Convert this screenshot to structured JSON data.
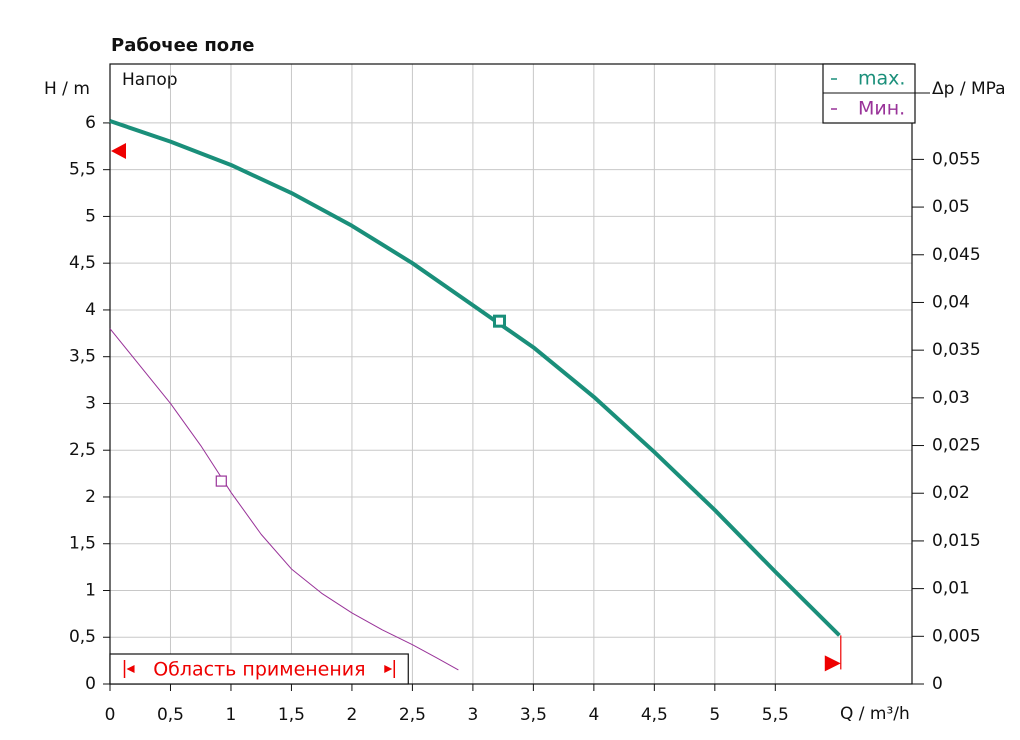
{
  "chart_data": {
    "type": "line",
    "title": "Рабочее поле",
    "y_label": "H / m",
    "y_annotation": "Напор",
    "y2_label": "Δp / MPa",
    "x_label": "Q / m³/h",
    "range_label": "Область применения",
    "range": [
      0.12,
      2.35
    ],
    "xlim": [
      0,
      6.63
    ],
    "ylim": [
      0,
      6.63
    ],
    "y2lim": [
      0,
      0.065
    ],
    "grid": true,
    "legend": "top-right",
    "xticks": [
      0,
      {
        "value": 0.5,
        "label": "0,5"
      },
      1,
      {
        "value": 1.5,
        "label": "1,5"
      },
      2,
      {
        "value": 2.5,
        "label": "2,5"
      },
      3,
      {
        "value": 3.5,
        "label": "3,5"
      },
      4,
      {
        "value": 4.5,
        "label": "4,5"
      },
      5,
      {
        "value": 5.5,
        "label": "5,5"
      }
    ],
    "yticks": [
      0,
      {
        "value": 0.5,
        "label": "0,5"
      },
      1,
      {
        "value": 1.5,
        "label": "1,5"
      },
      2,
      {
        "value": 2.5,
        "label": "2,5"
      },
      3,
      {
        "value": 3.5,
        "label": "3,5"
      },
      4,
      {
        "value": 4.5,
        "label": "4,5"
      },
      5,
      {
        "value": 5.5,
        "label": "5,5"
      },
      6
    ],
    "y2ticks": [
      0,
      {
        "value": 0.005,
        "label": "0,005"
      },
      {
        "value": 0.01,
        "label": "0,01"
      },
      {
        "value": 0.015,
        "label": "0,015"
      },
      {
        "value": 0.02,
        "label": "0,02"
      },
      {
        "value": 0.025,
        "label": "0,025"
      },
      {
        "value": 0.03,
        "label": "0,03"
      },
      {
        "value": 0.035,
        "label": "0,035"
      },
      {
        "value": 0.04,
        "label": "0,04"
      },
      {
        "value": 0.045,
        "label": "0,045"
      },
      {
        "value": 0.05,
        "label": "0,05"
      },
      {
        "value": 0.055,
        "label": "0,055"
      }
    ],
    "series": [
      {
        "name": "max.",
        "color": "#1a8f7a",
        "x": [
          0,
          0.5,
          1,
          1.5,
          2,
          2.5,
          3,
          3.5,
          4,
          4.5,
          5,
          5.5,
          6.03
        ],
        "values": [
          6.02,
          5.8,
          5.55,
          5.25,
          4.9,
          4.5,
          4.05,
          3.6,
          3.07,
          2.48,
          1.86,
          1.2,
          0.52
        ],
        "marker": [
          3.22,
          3.88
        ]
      },
      {
        "name": "Мин.",
        "color": "#993399",
        "x": [
          0,
          0.25,
          0.5,
          0.75,
          1,
          1.25,
          1.5,
          1.75,
          2,
          2.25,
          2.5,
          2.7,
          2.88
        ],
        "values": [
          3.8,
          3.4,
          3.0,
          2.55,
          2.05,
          1.6,
          1.23,
          0.97,
          0.76,
          0.58,
          0.42,
          0.28,
          0.15
        ],
        "marker": [
          0.92,
          2.17
        ]
      }
    ],
    "pointers": {
      "y": 5.7,
      "x": 6.0,
      "x_y": 0.22
    }
  }
}
